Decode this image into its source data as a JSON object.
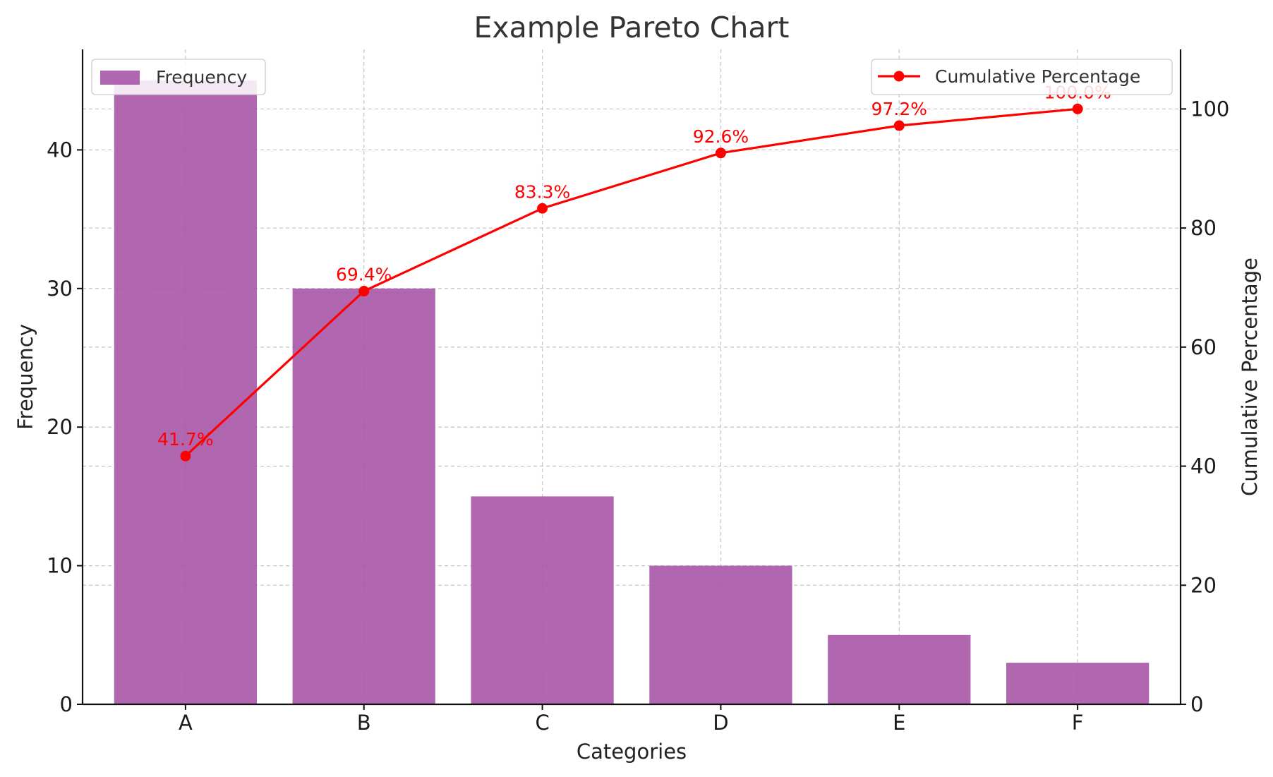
{
  "chart_data": {
    "type": "bar",
    "title": "Example Pareto Chart",
    "xlabel": "Categories",
    "ylabel": "Frequency",
    "y2label": "Cumulative Percentage",
    "categories": [
      "A",
      "B",
      "C",
      "D",
      "E",
      "F"
    ],
    "series": [
      {
        "name": "Frequency",
        "type": "bar",
        "axis": "left",
        "color": "#a855a7",
        "values": [
          45,
          30,
          15,
          10,
          5,
          3
        ]
      },
      {
        "name": "Cumulative Percentage",
        "type": "line",
        "axis": "right",
        "color": "#ff0000",
        "values": [
          41.7,
          69.4,
          83.3,
          92.6,
          97.2,
          100.0
        ],
        "data_labels": [
          "41.7%",
          "69.4%",
          "83.3%",
          "92.6%",
          "97.2%",
          "100.0%"
        ]
      }
    ],
    "ylim": [
      0,
      47.25
    ],
    "y2lim": [
      0,
      110
    ],
    "yticks": [
      0,
      10,
      20,
      30,
      40
    ],
    "y2ticks": [
      0,
      20,
      40,
      60,
      80,
      100
    ],
    "grid": true,
    "legend": [
      {
        "label": "Frequency",
        "position": "top-left"
      },
      {
        "label": "Cumulative Percentage",
        "position": "top-right"
      }
    ]
  }
}
